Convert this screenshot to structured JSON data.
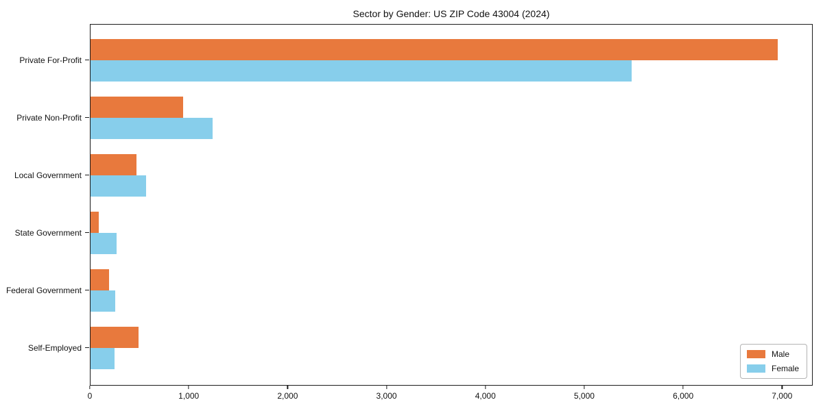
{
  "title": "Sector by Gender: US ZIP Code 43004 (2024)",
  "chart_data": {
    "type": "bar",
    "orientation": "horizontal",
    "title": "Sector by Gender: US ZIP Code 43004 (2024)",
    "xlabel": "",
    "ylabel": "",
    "categories": [
      "Private For-Profit",
      "Private Non-Profit",
      "Local Government",
      "State Government",
      "Federal Government",
      "Self-Employed"
    ],
    "series": [
      {
        "name": "Male",
        "color": "#E8793D",
        "values": [
          6960,
          940,
          465,
          85,
          190,
          485
        ]
      },
      {
        "name": "Female",
        "color": "#87CEEB",
        "values": [
          5480,
          1240,
          560,
          265,
          250,
          245
        ]
      }
    ],
    "xlim": [
      0,
      7310
    ],
    "x_ticks": [
      0,
      1000,
      2000,
      3000,
      4000,
      5000,
      6000,
      7000
    ],
    "x_tick_labels": [
      "0",
      "1,000",
      "2,000",
      "3,000",
      "4,000",
      "5,000",
      "6,000",
      "7,000"
    ],
    "grid": false,
    "legend_position": "lower right"
  },
  "legend": {
    "items": [
      {
        "label": "Male",
        "color": "#E8793D"
      },
      {
        "label": "Female",
        "color": "#87CEEB"
      }
    ]
  },
  "colors": {
    "male": "#E8793D",
    "female": "#87CEEB",
    "axis": "#1a1a1a",
    "background": "#ffffff",
    "legend_border": "#b3b3b3"
  }
}
